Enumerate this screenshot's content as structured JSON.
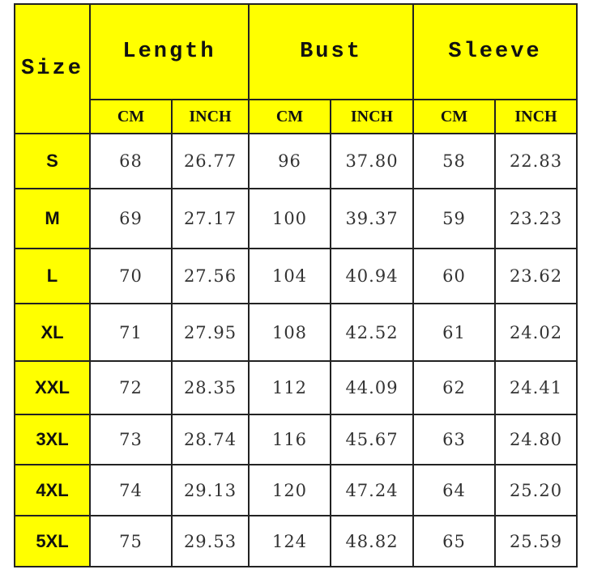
{
  "colors": {
    "header_bg": "#ffff00",
    "border": "#222222",
    "body_bg": "#ffffff"
  },
  "headers": {
    "size": "Size",
    "groups": [
      "Length",
      "Bust",
      "Sleeve"
    ],
    "units": [
      "CM",
      "INCH",
      "CM",
      "INCH",
      "CM",
      "INCH"
    ]
  },
  "rows": [
    {
      "size": "S",
      "values": [
        "68",
        "26.77",
        "96",
        "37.80",
        "58",
        "22.83"
      ]
    },
    {
      "size": "M",
      "values": [
        "69",
        "27.17",
        "100",
        "39.37",
        "59",
        "23.23"
      ]
    },
    {
      "size": "L",
      "values": [
        "70",
        "27.56",
        "104",
        "40.94",
        "60",
        "23.62"
      ]
    },
    {
      "size": "XL",
      "values": [
        "71",
        "27.95",
        "108",
        "42.52",
        "61",
        "24.02"
      ]
    },
    {
      "size": "XXL",
      "values": [
        "72",
        "28.35",
        "112",
        "44.09",
        "62",
        "24.41"
      ]
    },
    {
      "size": "3XL",
      "values": [
        "73",
        "28.74",
        "116",
        "45.67",
        "63",
        "24.80"
      ]
    },
    {
      "size": "4XL",
      "values": [
        "74",
        "29.13",
        "120",
        "47.24",
        "64",
        "25.20"
      ]
    },
    {
      "size": "5XL",
      "values": [
        "75",
        "29.53",
        "124",
        "48.82",
        "65",
        "25.59"
      ]
    }
  ]
}
